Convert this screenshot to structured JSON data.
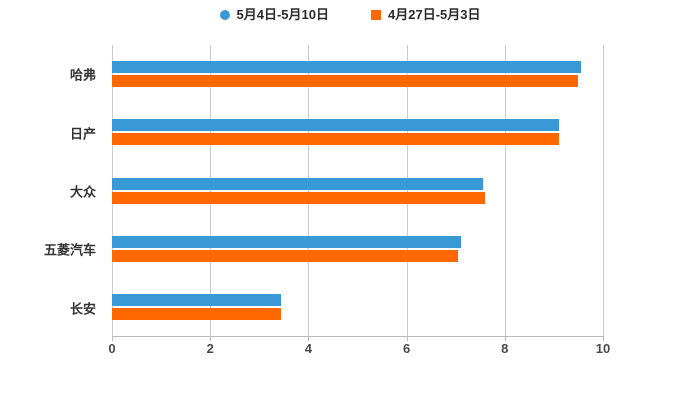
{
  "chart": {
    "background_color": "#ffffff",
    "gridline_color": "#cccccc",
    "axis_line_color": "#b9b9b9",
    "category_label_color": "#333333",
    "tick_label_color": "#4a4a4a",
    "legend_text_color": "#2b2b2b"
  },
  "chart_data": {
    "type": "bar",
    "orientation": "horizontal",
    "title": "",
    "xlabel": "",
    "ylabel": "",
    "categories": [
      "哈弗",
      "日产",
      "大众",
      "五菱汽车",
      "长安"
    ],
    "series": [
      {
        "name": "5月4日-5月10日",
        "color": "#3899d6",
        "marker": "circle",
        "values": [
          9.55,
          9.1,
          7.55,
          7.1,
          3.45
        ]
      },
      {
        "name": "4月27日-5月3日",
        "color": "#ff6700",
        "marker": "square",
        "values": [
          9.5,
          9.1,
          7.6,
          7.05,
          3.45
        ]
      }
    ],
    "xticks": [
      0,
      2,
      4,
      6,
      8,
      10
    ],
    "xlim": [
      0,
      10
    ],
    "grid": "vertical",
    "legend_position": "top-center"
  }
}
